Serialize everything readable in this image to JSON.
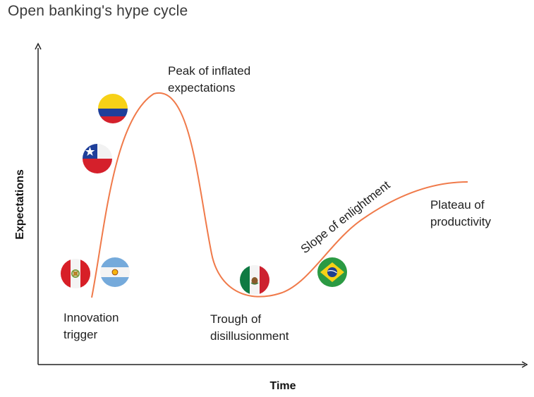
{
  "title": "Open banking's hype cycle",
  "axes": {
    "x_label": "Time",
    "y_label": "Expectations"
  },
  "phases": {
    "innovation_trigger": [
      "Innovation",
      "trigger"
    ],
    "peak": [
      "Peak of inflated",
      "expectations"
    ],
    "trough": [
      "Trough of",
      "disillusionment"
    ],
    "slope": "Slope of enlightment",
    "plateau": [
      "Plateau of",
      "productivity"
    ]
  },
  "colors": {
    "curve": "#f07a4a",
    "axis": "#222222"
  },
  "flags": [
    {
      "country": "Colombia",
      "icon": "colombia-flag-icon"
    },
    {
      "country": "Chile",
      "icon": "chile-flag-icon"
    },
    {
      "country": "Peru",
      "icon": "peru-flag-icon"
    },
    {
      "country": "Argentina",
      "icon": "argentina-flag-icon"
    },
    {
      "country": "Mexico",
      "icon": "mexico-flag-icon"
    },
    {
      "country": "Brazil",
      "icon": "brazil-flag-icon"
    }
  ]
}
